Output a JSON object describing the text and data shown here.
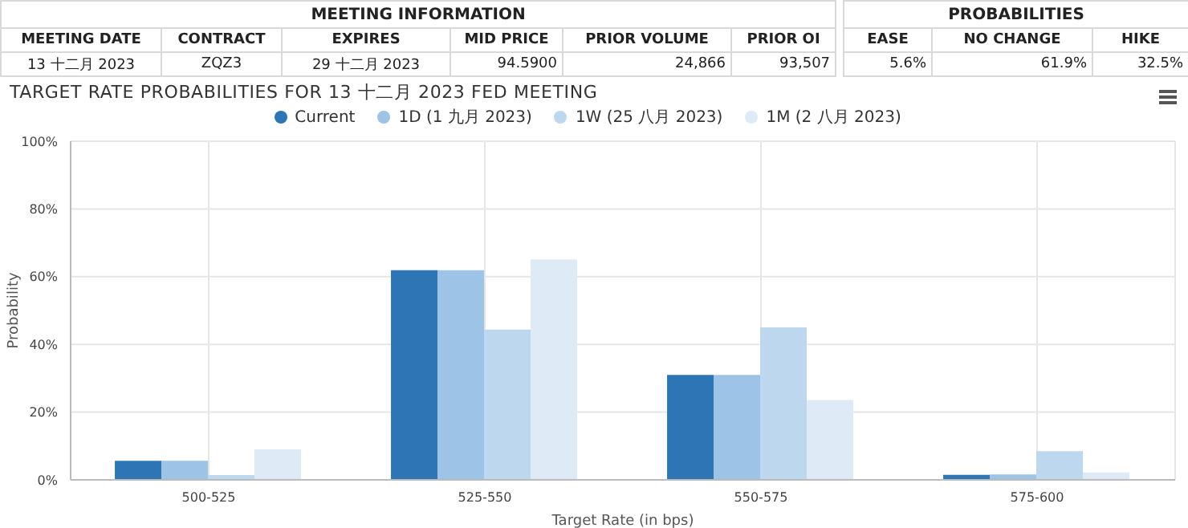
{
  "chart_data": [
    {
      "type": "other",
      "title": "MEETING INFORMATION",
      "categories": [
        "MEETING DATE",
        "CONTRACT",
        "EXPIRES",
        "MID PRICE",
        "PRIOR VOLUME",
        "PRIOR OI"
      ],
      "annotations": [
        "13 十二月 2023",
        "ZQZ3",
        "29 十二月 2023",
        "94.5900",
        "24,866",
        "93,507"
      ]
    },
    {
      "type": "other",
      "title": "PROBABILITIES",
      "categories": [
        "EASE",
        "NO CHANGE",
        "HIKE"
      ],
      "annotations": [
        "5.6%",
        "61.9%",
        "32.5%"
      ]
    },
    {
      "type": "bar",
      "title": "TARGET RATE PROBABILITIES FOR 13 十二月 2023 FED MEETING",
      "xlabel": "Target Rate (in bps)",
      "ylabel": "Probability",
      "categories": [
        "500-525",
        "525-550",
        "550-575",
        "575-600"
      ],
      "series": [
        {
          "name": "Current",
          "color": "#2e75b6",
          "values": [
            5.6,
            61.9,
            31.0,
            1.5
          ]
        },
        {
          "name": "1D (1 九月 2023)",
          "color": "#9dc3e6",
          "values": [
            5.6,
            61.9,
            31.0,
            1.6
          ]
        },
        {
          "name": "1W (25 八月 2023)",
          "color": "#bdd7ee",
          "values": [
            1.4,
            44.4,
            45.0,
            8.5
          ]
        },
        {
          "name": "1M (2 八月 2023)",
          "color": "#deebf7",
          "values": [
            9.0,
            65.1,
            23.6,
            2.2
          ]
        }
      ],
      "ylim": [
        0,
        100
      ],
      "yticks": [
        {
          "value": 0,
          "label": "0%"
        },
        {
          "value": 20,
          "label": "20%"
        },
        {
          "value": 40,
          "label": "40%"
        },
        {
          "value": 60,
          "label": "60%"
        },
        {
          "value": 80,
          "label": "80%"
        },
        {
          "value": 100,
          "label": "100%"
        }
      ],
      "grid": true,
      "legend": "top"
    }
  ]
}
